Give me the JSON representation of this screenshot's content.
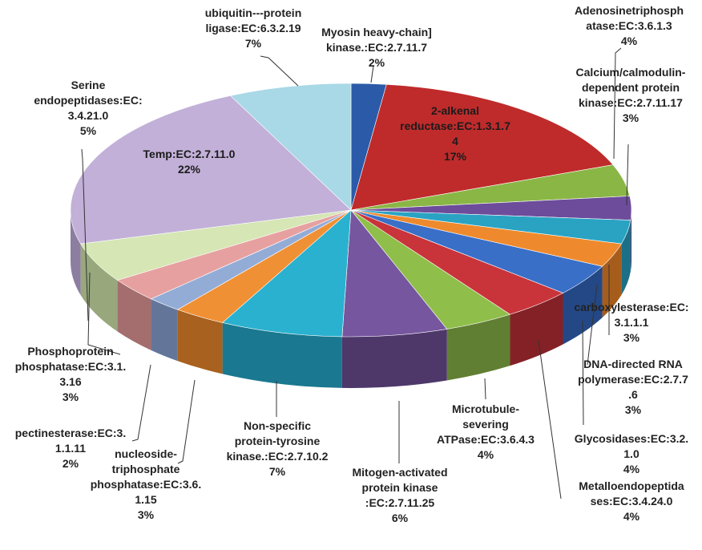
{
  "chart_data": {
    "type": "pie",
    "style": "3d-exploded-none",
    "start": "top, clockwise",
    "slices": [
      {
        "label": [
          "Myosin heavy-chain]",
          "kinase.:EC:2.7.11.7"
        ],
        "value": 2,
        "pct": "2%",
        "color": "#2b5aa8",
        "side": "#1c3d74",
        "label_pos": "outside"
      },
      {
        "label": [
          "2-alkenal",
          "reductase:EC:1.3.1.7",
          "4"
        ],
        "value": 17,
        "pct": "17%",
        "color": "#bf2b2b",
        "side": "#7e1b1b",
        "label_pos": "inside"
      },
      {
        "label": [
          "Adenosinetriphosph",
          "atase:EC:3.6.1.3"
        ],
        "value": 4,
        "pct": "4%",
        "color": "#8ab645",
        "side": "#5e7c2e",
        "label_pos": "outside"
      },
      {
        "label": [
          "Calcium/calmodulin-",
          "dependent protein",
          "kinase:EC:2.7.11.17"
        ],
        "value": 3,
        "pct": "3%",
        "color": "#6d4c9b",
        "side": "#48326a",
        "label_pos": "outside"
      },
      {
        "label": [
          "carboxylesterase:EC:",
          "3.1.1.1"
        ],
        "value": 3,
        "pct": "3%",
        "color": "#2aa3c3",
        "side": "#1b6f86",
        "label_pos": "outside"
      },
      {
        "label": [
          "DNA-directed RNA",
          "polymerase:EC:2.7.7",
          ".6"
        ],
        "value": 3,
        "pct": "3%",
        "color": "#ee8a2d",
        "side": "#a65d1c",
        "label_pos": "outside"
      },
      {
        "label": [
          "Glycosidases:EC:3.2.",
          "1.0"
        ],
        "value": 4,
        "pct": "4%",
        "color": "#3a6fc8",
        "side": "#244885",
        "label_pos": "outside"
      },
      {
        "label": [
          "Metalloendopeptida",
          "ses:EC:3.4.24.0"
        ],
        "value": 4,
        "pct": "4%",
        "color": "#c8343a",
        "side": "#842126",
        "label_pos": "outside"
      },
      {
        "label": [
          "Microtubule-",
          "severing",
          "ATPase:EC:3.6.4.3"
        ],
        "value": 4,
        "pct": "4%",
        "color": "#8fbe4a",
        "side": "#617f32",
        "label_pos": "outside"
      },
      {
        "label": [
          "Mitogen-activated",
          "protein kinase",
          ":EC:2.7.11.25"
        ],
        "value": 6,
        "pct": "6%",
        "color": "#76569e",
        "side": "#4e386a",
        "label_pos": "outside"
      },
      {
        "label": [
          "Non-specific",
          "protein-tyrosine",
          "kinase.:EC:2.7.10.2"
        ],
        "value": 7,
        "pct": "7%",
        "color": "#2ab1cf",
        "side": "#1a7890",
        "label_pos": "outside"
      },
      {
        "label": [
          "nucleoside-",
          "triphosphate",
          "phosphatase:EC:3.6.",
          "1.15"
        ],
        "value": 3,
        "pct": "3%",
        "color": "#f09034",
        "side": "#a8611e",
        "label_pos": "outside"
      },
      {
        "label": [
          "pectinesterase:EC:3.",
          "1.1.11"
        ],
        "value": 2,
        "pct": "2%",
        "color": "#93acd6",
        "side": "#63769a",
        "label_pos": "outside"
      },
      {
        "label": [
          "Phosphoprotein",
          "phosphatase:EC:3.1.",
          "3.16"
        ],
        "value": 3,
        "pct": "3%",
        "color": "#e7a0a0",
        "side": "#a46e6e",
        "label_pos": "outside"
      },
      {
        "label": [
          "Serine",
          "endopeptidases:EC:",
          "3.4.21.0"
        ],
        "value": 5,
        "pct": "5%",
        "color": "#d6e6b4",
        "side": "#98a77c",
        "label_pos": "outside"
      },
      {
        "label": [
          "Temp:EC:2.7.11.0"
        ],
        "value": 22,
        "pct": "22%",
        "color": "#c2b0d8",
        "side": "#8d7ea1",
        "label_pos": "inside"
      },
      {
        "label": [
          "ubiquitin---protein",
          "ligase:EC:6.3.2.19"
        ],
        "value": 7,
        "pct": "7%",
        "color": "#a9d8e6",
        "side": "#7499a6",
        "label_pos": "outside"
      }
    ],
    "legend": "none",
    "title": ""
  }
}
